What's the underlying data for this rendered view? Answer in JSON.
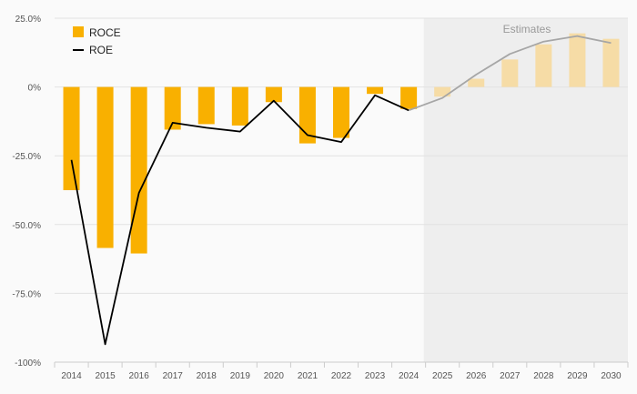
{
  "chart_data": {
    "type": "bar",
    "categories": [
      "2014",
      "2015",
      "2016",
      "2017",
      "2018",
      "2019",
      "2020",
      "2021",
      "2022",
      "2023",
      "2024",
      "2025",
      "2026",
      "2027",
      "2028",
      "2029",
      "2030"
    ],
    "series": [
      {
        "name": "ROCE",
        "kind": "bar",
        "color": "#f9b000",
        "estimate_color": "#f6dca6",
        "values": [
          -37.5,
          -58.5,
          -60.5,
          -15.5,
          -13.5,
          -14,
          -5.5,
          -20.5,
          -18.5,
          -2.5,
          -8,
          -3.5,
          3,
          10,
          15.5,
          19.5,
          17.5
        ]
      },
      {
        "name": "ROE",
        "kind": "line",
        "color": "#000000",
        "estimate_color": "#a6a6a6",
        "values": [
          -26.5,
          -93.5,
          -38.5,
          -13,
          -14.8,
          -16.2,
          -5,
          -17.5,
          -20,
          -3,
          -8.5,
          -4,
          4.5,
          12,
          16.5,
          18.5,
          16
        ]
      }
    ],
    "estimates_label": "Estimates",
    "estimates_start_index": 11,
    "ylim": [
      -100,
      25
    ],
    "yticks": [
      {
        "value": 25,
        "label": "25.0%"
      },
      {
        "value": 0,
        "label": "0%"
      },
      {
        "value": -25,
        "label": "-25.0%"
      },
      {
        "value": -50,
        "label": "-50.0%"
      },
      {
        "value": -75,
        "label": "-75.0%"
      },
      {
        "value": -100,
        "label": "-100%"
      }
    ],
    "grid": true,
    "legend_position": "top-left"
  }
}
